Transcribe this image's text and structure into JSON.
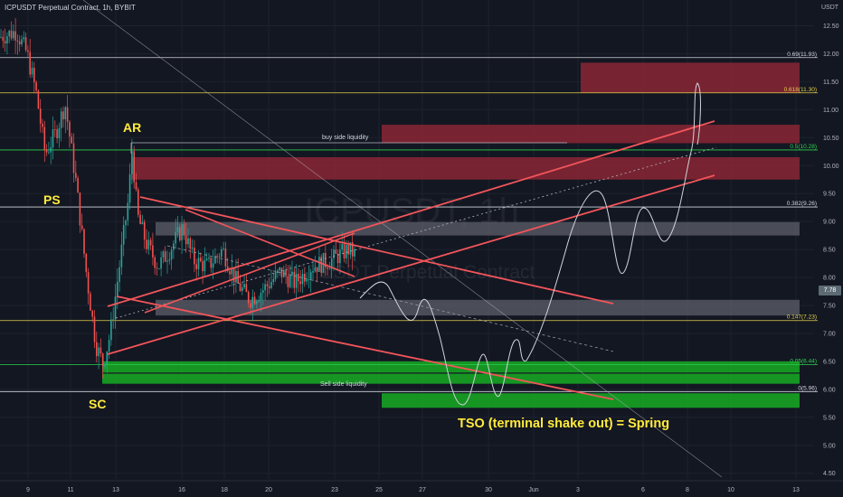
{
  "header": {
    "symbol_title": "ICPUSDT Perpetual Contract, 1h, BYBIT",
    "currency": "USDT",
    "watermark_symbol": "ICPUSDT, 1h",
    "watermark_desc": "ICPUSDT Perpetual Contract"
  },
  "current_price": "7.78",
  "annotations": {
    "ps": "PS",
    "ar": "AR",
    "sc": "SC",
    "buy_side": "buy side liquidity",
    "sell_side": "Sell side liquidity",
    "tso": "TSO (terminal shake out) = Spring"
  },
  "colors": {
    "background": "#131722",
    "candle_up": "#26a69a",
    "candle_down": "#ef5350",
    "supply_zone": "#8b2635",
    "demand_zone": "#17a324",
    "range_zone": "#5d606b",
    "channel": "#f2555a",
    "annotation_text": "#ffeb3b"
  },
  "chart_data": {
    "type": "candlestick",
    "y_range": [
      4.35,
      12.95
    ],
    "y_ticks": [
      "12.50",
      "12.00",
      "11.50",
      "11.00",
      "10.50",
      "10.00",
      "9.50",
      "9.00",
      "8.50",
      "8.00",
      "7.50",
      "7.00",
      "6.50",
      "6.00",
      "5.50",
      "5.00",
      "4.50"
    ],
    "x_ticks": [
      "9",
      "11",
      "13",
      "16",
      "18",
      "20",
      "23",
      "25",
      "27",
      "30",
      "Jun",
      "3",
      "6",
      "8",
      "10",
      "13"
    ],
    "fib_levels": [
      {
        "label": "0.69(11.93)",
        "price": 11.93,
        "color": "#d1d4dc"
      },
      {
        "label": "0.618(11.30)",
        "price": 11.3,
        "color": "#e5d04a"
      },
      {
        "label": "0.5(10.28)",
        "price": 10.28,
        "color": "#2bd14a"
      },
      {
        "label": "0.382(9.26)",
        "price": 9.26,
        "color": "#d1d4dc"
      },
      {
        "label": "0.147(7.23)",
        "price": 7.23,
        "color": "#e5d04a"
      },
      {
        "label": "0.05(6.44)",
        "price": 6.44,
        "color": "#2bd14a"
      },
      {
        "label": "0(5.96)",
        "price": 5.96,
        "color": "#d1d4dc"
      }
    ],
    "zones": [
      {
        "kind": "supply",
        "price_top": 11.84,
        "price_bottom": 11.3,
        "from": "Jun 5",
        "to": "Jun 13"
      },
      {
        "kind": "supply",
        "price_top": 10.73,
        "price_bottom": 10.4,
        "from": "25",
        "to": "Jun 13"
      },
      {
        "kind": "supply",
        "price_top": 10.15,
        "price_bottom": 9.75,
        "from": "13",
        "to": "Jun 13"
      },
      {
        "kind": "range",
        "price_top": 8.99,
        "price_bottom": 8.75,
        "from": "15",
        "to": "Jun 13"
      },
      {
        "kind": "range",
        "price_top": 7.6,
        "price_bottom": 7.32,
        "from": "15",
        "to": "Jun 13"
      },
      {
        "kind": "demand",
        "price_top": 6.5,
        "price_bottom": 6.3,
        "from": "12",
        "to": "Jun 13"
      },
      {
        "kind": "demand",
        "price_top": 6.28,
        "price_bottom": 6.1,
        "from": "12",
        "to": "Jun 13"
      },
      {
        "kind": "demand",
        "price_top": 5.93,
        "price_bottom": 5.67,
        "from": "25",
        "to": "Jun 13"
      }
    ]
  }
}
